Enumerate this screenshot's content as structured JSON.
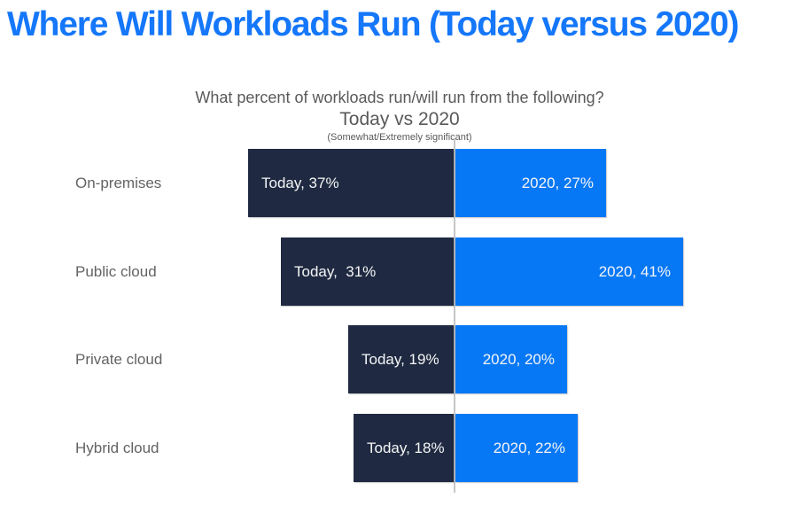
{
  "header": {
    "title": "Where Will Workloads Run (Today versus 2020)",
    "title_color": "#1577F9"
  },
  "chart_data": {
    "type": "bar",
    "subtype": "diverging-horizontal",
    "title": "What percent of workloads run/will run from the following?",
    "subtitle": "Today vs 2020",
    "note": "(Somewhat/Extremely significant)",
    "categories": [
      "On-premises",
      "Public cloud",
      "Private cloud",
      "Hybrid cloud"
    ],
    "series": [
      {
        "name": "Today",
        "color": "#1F2A42",
        "values": [
          37,
          31,
          19,
          18
        ]
      },
      {
        "name": "2020",
        "color": "#0778F5",
        "values": [
          27,
          41,
          20,
          22
        ]
      }
    ],
    "data_labels": {
      "today": [
        "Today, 37%",
        "Today,  31%",
        "Today, 19%",
        "Today, 18%"
      ],
      "year2020": [
        "2020, 27%",
        "2020, 41%",
        "2020, 20%",
        "2020, 22%"
      ]
    },
    "legend": "none",
    "axis_line_color": "#c6c6c6",
    "category_label_color": "#636363",
    "subtitle_color": "#595959",
    "value_label_color": "#f5f5f5"
  }
}
